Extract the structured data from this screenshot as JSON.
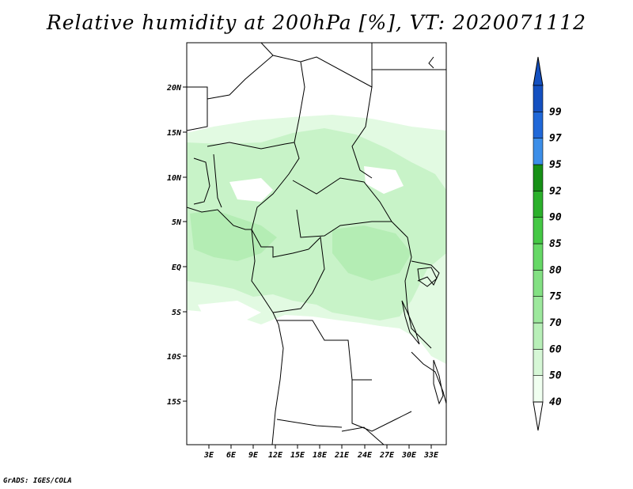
{
  "title": "Relative humidity at 200hPa [%], VT: 2020071112",
  "credit": "GrADS: IGES/COLA",
  "map": {
    "lat_labels": [
      "20N",
      "15N",
      "10N",
      "5N",
      "EQ",
      "5S",
      "10S",
      "15S"
    ],
    "lon_labels": [
      "3E",
      "6E",
      "9E",
      "12E",
      "15E",
      "18E",
      "21E",
      "24E",
      "27E",
      "30E",
      "33E"
    ]
  },
  "colorbar": {
    "labels": [
      "40",
      "50",
      "60",
      "70",
      "75",
      "80",
      "85",
      "90",
      "92",
      "95",
      "97",
      "99"
    ],
    "colors": [
      "#f0fff0",
      "#d6f7d6",
      "#b8efb8",
      "#9de89d",
      "#83e083",
      "#66d866",
      "#45c845",
      "#2bb02b",
      "#169016",
      "#3c8ee8",
      "#2068d8",
      "#1450c0"
    ],
    "triangle_top_color": "#1450c0",
    "triangle_bottom_color": "#ffffff"
  },
  "colors": {
    "frame": "#000000",
    "land_background": "#ffffff",
    "humid_light": "#e0fae0",
    "humid_mid": "#c4f2c4"
  }
}
